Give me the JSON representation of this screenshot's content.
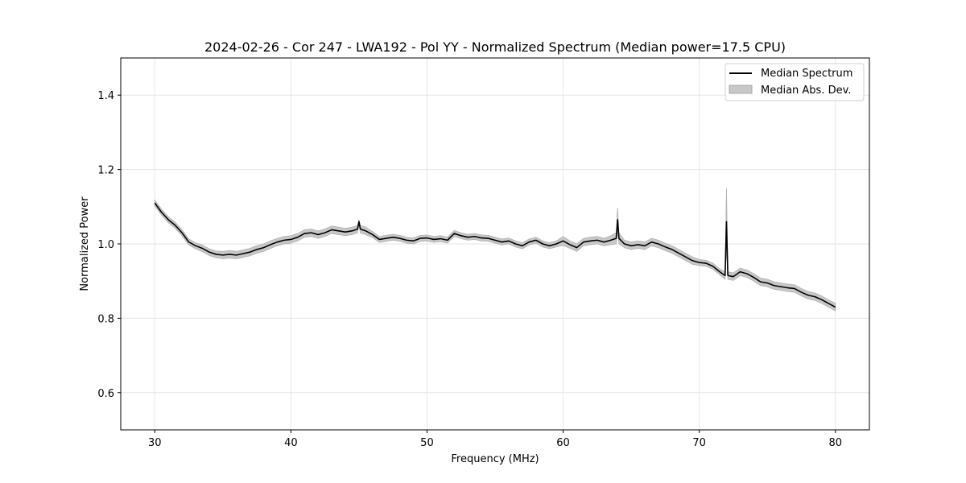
{
  "chart_data": {
    "type": "line",
    "title": "2024-02-26 - Cor 247 - LWA192 - Pol YY - Normalized Spectrum (Median power=17.5 CPU)",
    "xlabel": "Frequency (MHz)",
    "ylabel": "Normalized Power",
    "xlim": [
      27.5,
      82.5
    ],
    "ylim": [
      0.5,
      1.5
    ],
    "xticks": [
      30,
      40,
      50,
      60,
      70,
      80
    ],
    "yticks": [
      0.6,
      0.8,
      1.0,
      1.2,
      1.4
    ],
    "xtick_labels": [
      "30",
      "40",
      "50",
      "60",
      "70",
      "80"
    ],
    "ytick_labels": [
      "0.6",
      "0.8",
      "1.0",
      "1.2",
      "1.4"
    ],
    "grid": true,
    "legend_position": "top-right",
    "series": [
      {
        "name": "Median Spectrum",
        "color": "#000000",
        "x": [
          30,
          30.5,
          31,
          31.5,
          32,
          32.5,
          33,
          33.5,
          34,
          34.5,
          35,
          35.5,
          36,
          36.5,
          37,
          37.5,
          38,
          38.5,
          39,
          39.5,
          40,
          40.5,
          41,
          41.5,
          42,
          42.5,
          43,
          43.5,
          44,
          44.5,
          44.9,
          45,
          45.1,
          45.5,
          46,
          46.5,
          47,
          47.5,
          48,
          48.5,
          49,
          49.5,
          50,
          50.5,
          51,
          51.5,
          52,
          52.5,
          53,
          53.5,
          54,
          54.5,
          55,
          55.5,
          56,
          56.5,
          57,
          57.5,
          58,
          58.5,
          59,
          59.5,
          60,
          60.5,
          61,
          61.5,
          62,
          62.5,
          63,
          63.5,
          63.9,
          64,
          64.1,
          64.5,
          65,
          65.5,
          66,
          66.5,
          67,
          67.5,
          68,
          68.5,
          69,
          69.5,
          70,
          70.5,
          71,
          71.5,
          71.9,
          72,
          72.1,
          72.5,
          73,
          73.5,
          74,
          74.5,
          75,
          75.5,
          76,
          76.5,
          77,
          77.5,
          78,
          78.5,
          79,
          79.5,
          80
        ],
        "y": [
          1.11,
          1.085,
          1.065,
          1.05,
          1.03,
          1.005,
          0.995,
          0.988,
          0.978,
          0.972,
          0.97,
          0.972,
          0.97,
          0.974,
          0.978,
          0.985,
          0.99,
          0.998,
          1.005,
          1.01,
          1.012,
          1.018,
          1.028,
          1.03,
          1.025,
          1.03,
          1.038,
          1.035,
          1.032,
          1.035,
          1.04,
          1.06,
          1.04,
          1.035,
          1.025,
          1.012,
          1.015,
          1.018,
          1.015,
          1.01,
          1.008,
          1.015,
          1.016,
          1.012,
          1.014,
          1.01,
          1.028,
          1.022,
          1.018,
          1.02,
          1.016,
          1.015,
          1.01,
          1.005,
          1.008,
          1.0,
          0.995,
          1.005,
          1.01,
          1.0,
          0.995,
          1.0,
          1.008,
          0.998,
          0.99,
          1.005,
          1.008,
          1.01,
          1.005,
          1.01,
          1.015,
          1.065,
          1.015,
          1.0,
          0.995,
          0.998,
          0.995,
          1.005,
          1.0,
          0.992,
          0.985,
          0.975,
          0.965,
          0.955,
          0.95,
          0.948,
          0.94,
          0.925,
          0.915,
          1.06,
          0.915,
          0.912,
          0.925,
          0.92,
          0.91,
          0.898,
          0.895,
          0.888,
          0.885,
          0.882,
          0.88,
          0.87,
          0.862,
          0.858,
          0.85,
          0.84,
          0.83
        ]
      },
      {
        "name": "Median Abs. Dev.",
        "color": "#c8c8c8",
        "x": [
          30,
          30.5,
          31,
          31.5,
          32,
          32.5,
          33,
          33.5,
          34,
          34.5,
          35,
          35.5,
          36,
          36.5,
          37,
          37.5,
          38,
          38.5,
          39,
          39.5,
          40,
          40.5,
          41,
          41.5,
          42,
          42.5,
          43,
          43.5,
          44,
          44.5,
          44.9,
          45,
          45.1,
          45.5,
          46,
          46.5,
          47,
          47.5,
          48,
          48.5,
          49,
          49.5,
          50,
          50.5,
          51,
          51.5,
          52,
          52.5,
          53,
          53.5,
          54,
          54.5,
          55,
          55.5,
          56,
          56.5,
          57,
          57.5,
          58,
          58.5,
          59,
          59.5,
          60,
          60.5,
          61,
          61.5,
          62,
          62.5,
          63,
          63.5,
          63.9,
          64,
          64.1,
          64.5,
          65,
          65.5,
          66,
          66.5,
          67,
          67.5,
          68,
          68.5,
          69,
          69.5,
          70,
          70.5,
          71,
          71.5,
          71.9,
          72,
          72.1,
          72.5,
          73,
          73.5,
          74,
          74.5,
          75,
          75.5,
          76,
          76.5,
          77,
          77.5,
          78,
          78.5,
          79,
          79.5,
          80
        ],
        "upper": [
          1.118,
          1.093,
          1.073,
          1.058,
          1.038,
          1.013,
          1.003,
          0.997,
          0.987,
          0.981,
          0.98,
          0.982,
          0.98,
          0.984,
          0.988,
          0.995,
          1.0,
          1.008,
          1.015,
          1.02,
          1.022,
          1.028,
          1.038,
          1.04,
          1.035,
          1.04,
          1.048,
          1.045,
          1.042,
          1.045,
          1.05,
          1.065,
          1.05,
          1.045,
          1.033,
          1.02,
          1.023,
          1.026,
          1.023,
          1.018,
          1.016,
          1.023,
          1.024,
          1.02,
          1.022,
          1.018,
          1.036,
          1.03,
          1.026,
          1.028,
          1.024,
          1.023,
          1.018,
          1.013,
          1.016,
          1.008,
          1.003,
          1.013,
          1.018,
          1.008,
          1.003,
          1.008,
          1.02,
          1.008,
          1.0,
          1.015,
          1.018,
          1.02,
          1.015,
          1.022,
          1.03,
          1.097,
          1.03,
          1.01,
          1.005,
          1.008,
          1.005,
          1.015,
          1.01,
          1.002,
          0.995,
          0.985,
          0.975,
          0.965,
          0.958,
          0.956,
          0.948,
          0.933,
          0.925,
          1.15,
          0.925,
          0.922,
          0.935,
          0.93,
          0.92,
          0.908,
          0.905,
          0.898,
          0.895,
          0.892,
          0.89,
          0.88,
          0.872,
          0.868,
          0.86,
          0.85,
          0.84
        ],
        "lower": [
          1.102,
          1.077,
          1.057,
          1.042,
          1.022,
          0.997,
          0.987,
          0.979,
          0.969,
          0.963,
          0.96,
          0.962,
          0.96,
          0.964,
          0.968,
          0.975,
          0.98,
          0.988,
          0.995,
          1.0,
          1.002,
          1.008,
          1.018,
          1.02,
          1.015,
          1.02,
          1.028,
          1.025,
          1.022,
          1.025,
          1.03,
          1.055,
          1.03,
          1.025,
          1.017,
          1.004,
          1.007,
          1.01,
          1.007,
          1.002,
          1.0,
          1.007,
          1.008,
          1.004,
          1.006,
          1.002,
          1.02,
          1.014,
          1.01,
          1.012,
          1.008,
          1.007,
          1.002,
          0.997,
          1.0,
          0.992,
          0.987,
          0.997,
          1.002,
          0.992,
          0.987,
          0.992,
          0.996,
          0.988,
          0.98,
          0.995,
          0.998,
          1.0,
          0.995,
          0.998,
          1.0,
          1.04,
          1.0,
          0.99,
          0.985,
          0.988,
          0.985,
          0.995,
          0.99,
          0.982,
          0.975,
          0.965,
          0.955,
          0.945,
          0.942,
          0.94,
          0.932,
          0.917,
          0.905,
          0.99,
          0.905,
          0.902,
          0.915,
          0.91,
          0.9,
          0.888,
          0.885,
          0.878,
          0.875,
          0.872,
          0.87,
          0.86,
          0.852,
          0.848,
          0.84,
          0.83,
          0.82
        ]
      }
    ]
  }
}
